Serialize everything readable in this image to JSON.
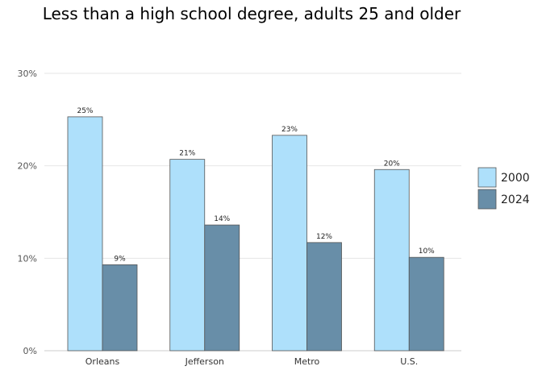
{
  "chart_data": {
    "type": "bar",
    "title": "Less than a high school degree, adults 25 and older",
    "xlabel": "",
    "ylabel": "",
    "categories": [
      "Orleans",
      "Jefferson",
      "Metro",
      "U.S."
    ],
    "series": [
      {
        "name": "2000",
        "values": [
          25.3,
          20.7,
          23.3,
          19.6
        ],
        "labels": [
          "25%",
          "21%",
          "23%",
          "20%"
        ],
        "color": "#aee0fb"
      },
      {
        "name": "2024",
        "values": [
          9.3,
          13.6,
          11.7,
          10.1
        ],
        "labels": [
          "9%",
          "14%",
          "12%",
          "10%"
        ],
        "color": "#688ea8"
      }
    ],
    "ylim": [
      0,
      30
    ],
    "yticks": [
      0,
      10,
      20,
      30
    ],
    "ytick_labels": [
      "0%",
      "10%",
      "20%",
      "30%"
    ],
    "grid": true,
    "legend_position": "right"
  }
}
